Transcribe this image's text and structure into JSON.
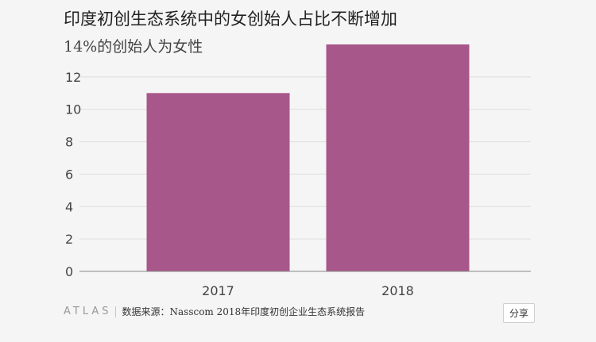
{
  "chart_data": {
    "type": "bar",
    "title": "印度初创生态系统中的女创始人占比不断增加",
    "subtitle": "14%的创始人为女性",
    "categories": [
      "2017",
      "2018"
    ],
    "values": [
      11,
      14
    ],
    "yticks": [
      0,
      2,
      4,
      6,
      8,
      10,
      12
    ],
    "ylim": [
      0,
      14
    ],
    "grid": true,
    "bar_color": "#a8578a"
  },
  "footer": {
    "logo": "ATLAS",
    "source": "数据来源：Nasscom 2018年印度初创企业生态系统报告",
    "share_label": "分享"
  }
}
